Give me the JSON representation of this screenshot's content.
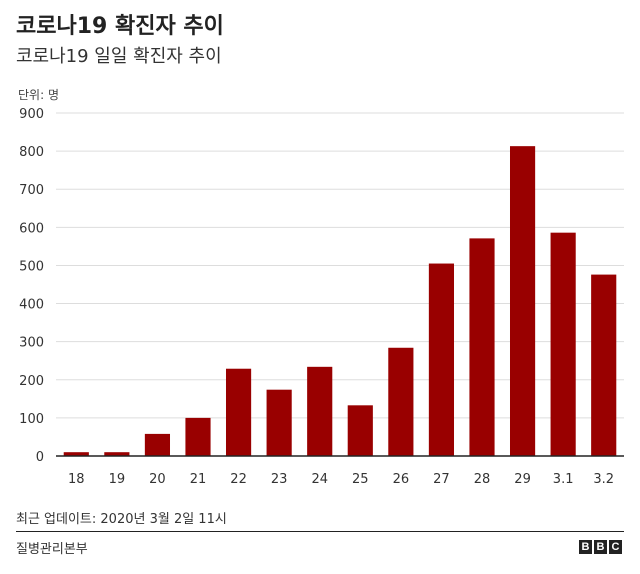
{
  "header": {
    "title": "코로나19 확진자 추이",
    "subtitle": "코로나19 일일 확진자 추이",
    "unit": "단위: 명"
  },
  "footer": {
    "updated": "최근 업데이트: 2020년 3월 2일 11시",
    "source": "질병관리본부",
    "logo_letters": [
      "B",
      "B",
      "C"
    ]
  },
  "colors": {
    "bar": "#990000",
    "grid": "#dddddd",
    "axis": "#222222"
  },
  "chart_data": {
    "type": "bar",
    "categories": [
      "18",
      "19",
      "20",
      "21",
      "22",
      "23",
      "24",
      "25",
      "26",
      "27",
      "28",
      "29",
      "3.1",
      "3.2"
    ],
    "values": [
      10,
      10,
      58,
      100,
      229,
      174,
      234,
      133,
      284,
      505,
      571,
      813,
      586,
      476
    ],
    "ylim": [
      0,
      900
    ],
    "yticks": [
      0,
      100,
      200,
      300,
      400,
      500,
      600,
      700,
      800,
      900
    ],
    "grid": true
  }
}
